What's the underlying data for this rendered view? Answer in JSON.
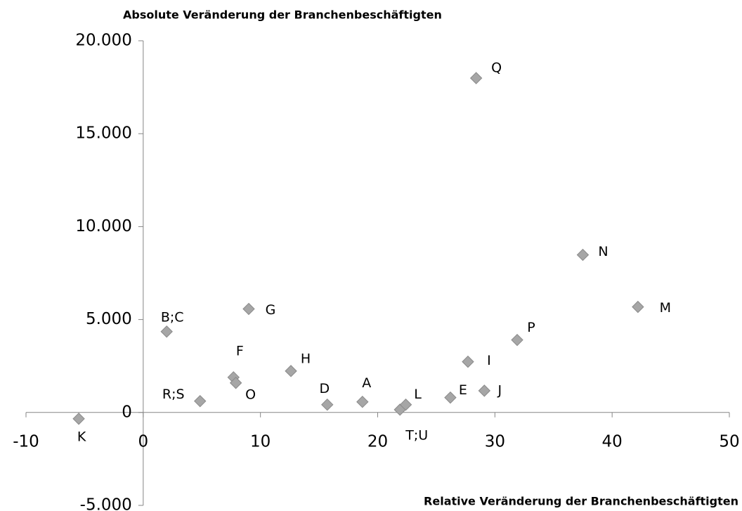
{
  "chart_data": {
    "type": "scatter",
    "y_axis_title": "Absolute Veränderung der Branchenbeschäftigten",
    "x_axis_title": "Relative Veränderung der Branchenbeschäftigten",
    "point_labels": [
      "K",
      "B;C",
      "G",
      "F",
      "O",
      "R;S",
      "H",
      "D",
      "A",
      "T;U",
      "L",
      "E",
      "I",
      "J",
      "P",
      "Q",
      "N",
      "M"
    ],
    "x": [
      -5.5,
      2.0,
      9.0,
      7.7,
      7.9,
      4.85,
      12.6,
      15.7,
      18.7,
      21.9,
      22.4,
      26.2,
      27.7,
      29.1,
      31.9,
      28.4,
      37.5,
      42.2
    ],
    "series": [
      {
        "color": "#a6a6a6",
        "values": [
          -340,
          4350,
          5570,
          1890,
          1590,
          610,
          2230,
          420,
          570,
          150,
          420,
          800,
          2730,
          1170,
          3900,
          17990,
          8480,
          5680
        ]
      }
    ],
    "xlim": [
      -10,
      50
    ],
    "xticks": [
      -10,
      0,
      10,
      20,
      30,
      40,
      50
    ],
    "ylim": [
      -5000,
      20000
    ],
    "yticks": [
      {
        "value": -5000,
        "label": "-5.000"
      },
      0,
      {
        "value": 5000,
        "label": "5.000"
      },
      {
        "value": 10000,
        "label": "10.000"
      },
      {
        "value": 15000,
        "label": "15.000"
      },
      {
        "value": 20000,
        "label": "20.000"
      }
    ]
  }
}
